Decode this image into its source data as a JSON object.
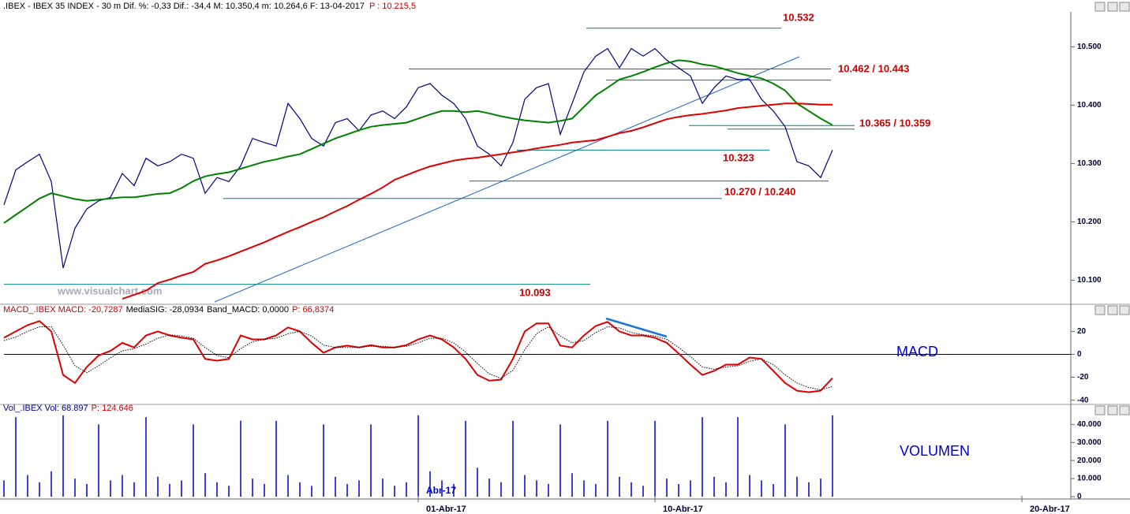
{
  "chart_data": [
    {
      "type": "line",
      "title": ".IBEX - IBEX 35 INDEX - 30 m  Dif. %: -0,33  Dif.: -34,4  M: 10.350,4  m: 10.264,6  F: 13-04-2017",
      "subtitle": "P : 10.215,5",
      "watermark": "www.visualchart.com",
      "ylim": [
        10060,
        10560
      ],
      "yticks": [
        {
          "value": 10500,
          "label": "10.500"
        },
        {
          "value": 10400,
          "label": "10.400"
        },
        {
          "value": 10300,
          "label": "10.300"
        },
        {
          "value": 10200,
          "label": "10.200"
        },
        {
          "value": 10100,
          "label": "10.100"
        }
      ],
      "level_color": "#008080",
      "levels": [
        {
          "label": "10.532",
          "values": [
            10532
          ]
        },
        {
          "label": "10.462 / 10.443",
          "values": [
            10462,
            10443
          ]
        },
        {
          "label": "10.365 / 10.359",
          "values": [
            10365,
            10359
          ]
        },
        {
          "label": "10.323",
          "values": [
            10323
          ]
        },
        {
          "label": "10.270 / 10.240",
          "values": [
            10270,
            10240
          ]
        },
        {
          "label": "10.093",
          "values": [
            10093
          ]
        }
      ],
      "series": [
        {
          "color": "#000080",
          "width": 1.2,
          "values": [
            10229,
            10289,
            10303,
            10316,
            10269,
            10121,
            10189,
            10222,
            10236,
            10242,
            10283,
            10262,
            10309,
            10296,
            10303,
            10316,
            10309,
            10249,
            10276,
            10269,
            10296,
            10343,
            10336,
            10330,
            10403,
            10377,
            10343,
            10330,
            10370,
            10377,
            10356,
            10383,
            10390,
            10377,
            10397,
            10430,
            10437,
            10417,
            10403,
            10377,
            10330,
            10316,
            10296,
            10336,
            10410,
            10430,
            10437,
            10350,
            10403,
            10457,
            10484,
            10497,
            10464,
            10497,
            10484,
            10497,
            10477,
            10464,
            10450,
            10403,
            10430,
            10450,
            10444,
            10444,
            10410,
            10390,
            10363,
            10303,
            10296,
            10276,
            10323,
            null,
            null,
            null,
            null,
            null,
            null,
            null,
            null,
            null,
            null,
            null,
            null,
            null,
            null,
            null,
            null
          ]
        },
        {
          "color": "#008000",
          "width": 2,
          "values": [
            10198,
            10212,
            10226,
            10240,
            10249,
            10244,
            10239,
            10236,
            10238,
            10240,
            10242,
            10242,
            10245,
            10248,
            10249,
            10258,
            10270,
            10278,
            10282,
            10285,
            10291,
            10297,
            10303,
            10307,
            10312,
            10316,
            10325,
            10334,
            10343,
            10350,
            10357,
            10363,
            10366,
            10368,
            10370,
            10377,
            10384,
            10390,
            10390,
            10388,
            10390,
            10386,
            10381,
            10377,
            10374,
            10372,
            10370,
            10373,
            10377,
            10397,
            10417,
            10430,
            10444,
            10450,
            10457,
            10465,
            10472,
            10477,
            10475,
            10470,
            10467,
            10461,
            10455,
            10450,
            10446,
            10437,
            10425,
            10403,
            10390,
            10377,
            10366,
            null,
            null,
            null,
            null,
            null,
            null,
            null,
            null,
            null,
            null,
            null,
            null,
            null,
            null,
            null,
            null
          ]
        },
        {
          "color": "#e00000",
          "width": 2,
          "values": [
            null,
            null,
            null,
            null,
            null,
            null,
            null,
            null,
            null,
            null,
            10068,
            10075,
            10082,
            10095,
            10101,
            10108,
            10114,
            10128,
            10134,
            10141,
            10149,
            10157,
            10165,
            10174,
            10183,
            10191,
            10200,
            10208,
            10218,
            10227,
            10238,
            10248,
            10259,
            10272,
            10280,
            10288,
            10295,
            10300,
            10305,
            10308,
            10310,
            10313,
            10316,
            10319,
            10322,
            10326,
            10329,
            10332,
            10336,
            10338,
            10340,
            10346,
            10352,
            10356,
            10362,
            10369,
            10376,
            10380,
            10383,
            10385,
            10388,
            10391,
            10395,
            10397,
            10399,
            10401,
            10403,
            10403,
            10402,
            10401,
            10401,
            null,
            null,
            null,
            null,
            null,
            null,
            null,
            null,
            null,
            null,
            null,
            null,
            null,
            null,
            null,
            null
          ]
        }
      ]
    },
    {
      "type": "line",
      "title": "MACD_.IBEX MACD: -20,7287",
      "signal_label": "MediaSIG: -28,0934",
      "band_label": "Band_MACD: 0,0000",
      "subtitle": "P: 66,8374",
      "panel_label": "MACD",
      "ylim": [
        -43,
        34
      ],
      "yticks": [
        20,
        0,
        -20,
        -40
      ],
      "zero_line": true,
      "series": [
        {
          "color": "#e00000",
          "width": 2,
          "values": [
            14.5,
            20,
            25.5,
            29,
            20,
            -18,
            -25,
            -11,
            -1,
            3,
            10,
            6,
            16.5,
            20,
            16.5,
            14.5,
            13,
            -4,
            -5.5,
            -4,
            16.5,
            13,
            13,
            16.5,
            23.5,
            20,
            10,
            1.4,
            6,
            7.6,
            6,
            8,
            6,
            6,
            8,
            13,
            16.5,
            13,
            6,
            -4,
            -18,
            -23,
            -22,
            -4,
            20,
            27,
            27,
            7.6,
            6,
            16.5,
            24.8,
            28.3,
            20,
            16.5,
            16.5,
            14.5,
            10,
            0.7,
            -9,
            -18,
            -14.5,
            -9,
            -9,
            -2.8,
            -4,
            -14.5,
            -25,
            -31.7,
            -33,
            -31.7,
            -20.7,
            null,
            null,
            null,
            null,
            null,
            null,
            null,
            null,
            null,
            null,
            null,
            null,
            null,
            null,
            null,
            null
          ]
        },
        {
          "color": "#000000",
          "width": 1,
          "dashed": true,
          "values": [
            12,
            15,
            20,
            24,
            24,
            8,
            -10,
            -16,
            -10,
            -3,
            3,
            5,
            9,
            14,
            17,
            16,
            14,
            6,
            -1,
            -3,
            5,
            11,
            13,
            14,
            18,
            20,
            16,
            8,
            6,
            6,
            6,
            7,
            7,
            6,
            7,
            10,
            14,
            14,
            10,
            2,
            -8,
            -17,
            -21,
            -14,
            4,
            18,
            24,
            16,
            10,
            12,
            19,
            24,
            23,
            19,
            17,
            16,
            13,
            6,
            -2,
            -11,
            -13,
            -11,
            -10,
            -6,
            -4,
            -9,
            -18,
            -25,
            -29,
            -31,
            -28,
            null,
            null,
            null,
            null,
            null,
            null,
            null,
            null,
            null,
            null,
            null,
            null,
            null,
            null,
            null,
            null
          ]
        }
      ]
    },
    {
      "type": "bar",
      "title": "Vol_.IBEX Vol: 68.897",
      "subtitle": "P: 124.646",
      "panel_label": "VOLUMEN",
      "month_label": "Abr-17",
      "ylim": [
        0,
        48000
      ],
      "yticks": [
        {
          "value": 40000,
          "label": "40.000"
        },
        {
          "value": 30000,
          "label": "30.000"
        },
        {
          "value": 20000,
          "label": "20.000"
        },
        {
          "value": 10000,
          "label": "10.000"
        },
        0
      ],
      "categories": [
        null,
        null,
        null,
        null,
        null,
        null,
        null,
        null,
        null,
        null,
        null,
        null,
        null,
        null,
        null,
        null,
        null,
        null,
        null,
        null,
        null,
        null,
        null,
        null,
        null,
        null,
        null,
        null,
        null,
        null,
        null,
        null,
        null,
        null,
        null,
        "01-Abr-17",
        null,
        null,
        null,
        null,
        null,
        null,
        null,
        null,
        null,
        null,
        null,
        null,
        null,
        null,
        null,
        null,
        null,
        null,
        null,
        "10-Abr-17",
        null,
        null,
        null,
        null,
        null,
        null,
        null,
        null,
        null,
        null,
        null,
        null,
        null,
        null,
        null,
        null,
        null,
        null,
        null,
        null,
        null,
        null,
        null,
        null,
        null,
        null,
        null,
        null,
        null,
        null,
        "20-Abr-17"
      ],
      "series": [
        {
          "color": "#0000cc",
          "values": [
            9000,
            44000,
            12000,
            8000,
            14000,
            45000,
            10000,
            7000,
            40000,
            9000,
            12000,
            8000,
            44000,
            11000,
            7000,
            9000,
            40000,
            13000,
            8000,
            6000,
            42000,
            10000,
            7000,
            42000,
            12000,
            8000,
            6000,
            40000,
            11000,
            7000,
            9000,
            40000,
            10000,
            6000,
            8000,
            45000,
            14000,
            9000,
            7000,
            42000,
            16000,
            10000,
            8000,
            42000,
            12000,
            9000,
            7000,
            40000,
            13000,
            9000,
            7000,
            42000,
            11000,
            8000,
            6000,
            42000,
            10000,
            7000,
            9000,
            44000,
            11000,
            8000,
            44000,
            12000,
            9000,
            7000,
            40000,
            11000,
            8000,
            10000,
            45000,
            null,
            null,
            null,
            null,
            null,
            null,
            null,
            null,
            null,
            null,
            null,
            null,
            null,
            null,
            null,
            null
          ]
        }
      ]
    }
  ]
}
